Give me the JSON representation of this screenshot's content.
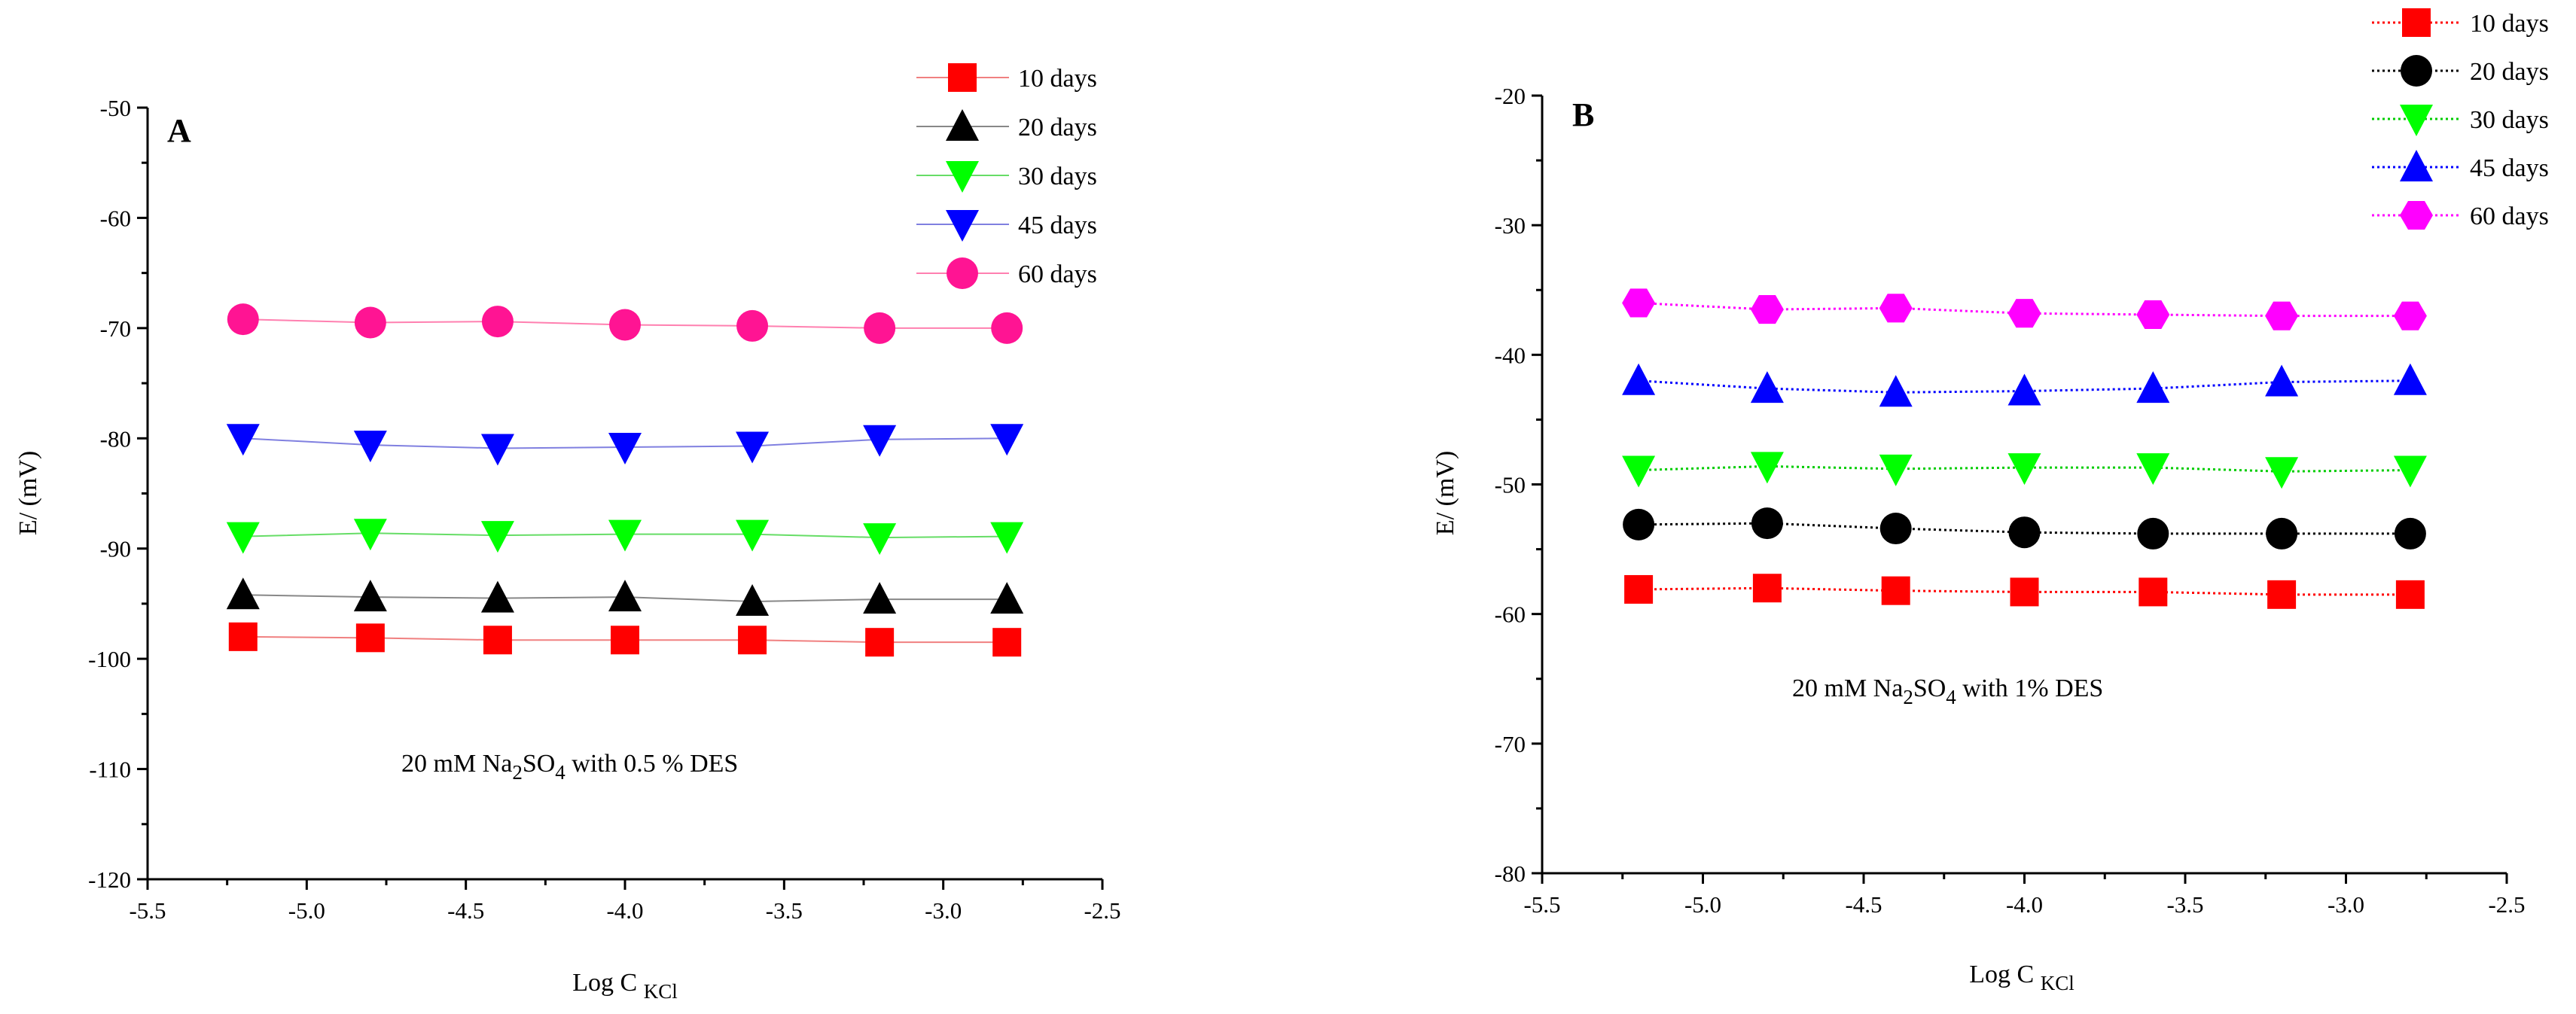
{
  "chart_data": [
    {
      "type": "line",
      "panel_label": "A",
      "xlabel": "Log C",
      "xlabel_sub": "KCl",
      "ylabel": "E/ (mV)",
      "xlim": [
        -5.5,
        -2.5
      ],
      "ylim": [
        -120,
        -50
      ],
      "xticks": [
        -5.5,
        -5.0,
        -4.5,
        -4.0,
        -3.5,
        -3.0,
        -2.5
      ],
      "xtick_labels": [
        "-5.5",
        "-5.0",
        "-4.5",
        "-4.0",
        "-3.5",
        "-3.0",
        "-2.5"
      ],
      "yticks": [
        -120,
        -110,
        -100,
        -90,
        -80,
        -70,
        -60,
        -50
      ],
      "ytick_labels": [
        "-120",
        "-110",
        "-100",
        "-90",
        "-80",
        "-70",
        "-60",
        "-50"
      ],
      "annotation": {
        "pre": "20 mM Na",
        "sub1": "2",
        "mid": "SO",
        "sub2": "4",
        "post": " with 0.5 % DES"
      },
      "x": [
        -5.2,
        -4.8,
        -4.4,
        -4.0,
        -3.6,
        -3.2,
        -2.8
      ],
      "series": [
        {
          "name": "10 days",
          "marker": "square",
          "color": "#ff0000",
          "line_color": "#f08080",
          "values": [
            -98.0,
            -98.1,
            -98.3,
            -98.3,
            -98.3,
            -98.5,
            -98.5
          ]
        },
        {
          "name": "20 days",
          "marker": "triangle-up",
          "color": "#000000",
          "line_color": "#888888",
          "values": [
            -94.2,
            -94.4,
            -94.5,
            -94.4,
            -94.8,
            -94.6,
            -94.6
          ]
        },
        {
          "name": "30 days",
          "marker": "triangle-down",
          "color": "#00ff00",
          "line_color": "#66dd66",
          "values": [
            -88.9,
            -88.6,
            -88.8,
            -88.7,
            -88.7,
            -89.0,
            -88.9
          ]
        },
        {
          "name": "45 days",
          "marker": "triangle-down",
          "color": "#0000ff",
          "line_color": "#8080e0",
          "values": [
            -80.0,
            -80.6,
            -80.9,
            -80.8,
            -80.7,
            -80.1,
            -80.0
          ]
        },
        {
          "name": "60 days",
          "marker": "circle",
          "color": "#ff1493",
          "line_color": "#ff80b0",
          "values": [
            -69.2,
            -69.5,
            -69.4,
            -69.7,
            -69.8,
            -70.0,
            -70.0
          ]
        }
      ]
    },
    {
      "type": "line",
      "panel_label": "B",
      "xlabel": "Log C",
      "xlabel_sub": "KCl",
      "ylabel": "E/ (mV)",
      "xlim": [
        -5.5,
        -2.5
      ],
      "ylim": [
        -80,
        -20
      ],
      "xticks": [
        -5.5,
        -5.0,
        -4.5,
        -4.0,
        -3.5,
        -3.0,
        -2.5
      ],
      "xtick_labels": [
        "-5.5",
        "-5.0",
        "-4.5",
        "-4.0",
        "-3.5",
        "-3.0",
        "-2.5"
      ],
      "yticks": [
        -80,
        -70,
        -60,
        -50,
        -40,
        -30,
        -20
      ],
      "ytick_labels": [
        "-80",
        "-70",
        "-60",
        "-50",
        "-40",
        "-30",
        "-20"
      ],
      "annotation": {
        "pre": "20 mM Na",
        "sub1": "2",
        "mid": "SO",
        "sub2": "4",
        "post": " with 1% DES"
      },
      "x": [
        -5.2,
        -4.8,
        -4.4,
        -4.0,
        -3.6,
        -3.2,
        -2.8
      ],
      "series": [
        {
          "name": "10 days",
          "marker": "square",
          "color": "#ff0000",
          "line_color": "#ff0000",
          "values": [
            -58.1,
            -58.0,
            -58.2,
            -58.3,
            -58.3,
            -58.5,
            -58.5
          ]
        },
        {
          "name": "20 days",
          "marker": "circle",
          "color": "#000000",
          "line_color": "#000000",
          "values": [
            -53.1,
            -53.0,
            -53.4,
            -53.7,
            -53.8,
            -53.8,
            -53.8
          ]
        },
        {
          "name": "30 days",
          "marker": "triangle-down",
          "color": "#00ff00",
          "line_color": "#00cc00",
          "values": [
            -48.9,
            -48.6,
            -48.8,
            -48.7,
            -48.7,
            -49.0,
            -48.9
          ]
        },
        {
          "name": "45 days",
          "marker": "triangle-up",
          "color": "#0000ff",
          "line_color": "#0000ff",
          "values": [
            -42.0,
            -42.6,
            -42.9,
            -42.8,
            -42.6,
            -42.1,
            -42.0
          ]
        },
        {
          "name": "60 days",
          "marker": "hexagon",
          "color": "#ff00ff",
          "line_color": "#ff00ff",
          "values": [
            -36.0,
            -36.5,
            -36.4,
            -36.8,
            -36.9,
            -37.0,
            -37.0
          ]
        }
      ]
    }
  ]
}
